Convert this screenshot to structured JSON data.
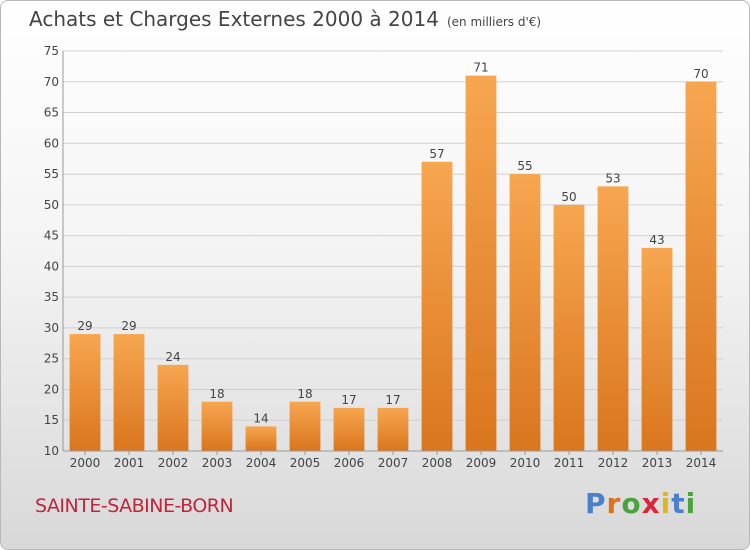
{
  "header": {
    "title": "Achats et Charges Externes 2000 à 2014",
    "unit": "(en milliers d'€)"
  },
  "footer": {
    "city": "SAINTE-SABINE-BORN",
    "logo": "Proxiti"
  },
  "colors": {
    "bar_top": "#f7a650",
    "bar_bottom": "#d9761e",
    "grid": "#d0d0d0",
    "axis_text": "#444444"
  },
  "chart_data": {
    "type": "bar",
    "title": "Achats et Charges Externes 2000 à 2014",
    "subtitle": "(en milliers d'€)",
    "xlabel": "",
    "ylabel": "",
    "categories": [
      "2000",
      "2001",
      "2002",
      "2003",
      "2004",
      "2005",
      "2006",
      "2007",
      "2008",
      "2009",
      "2010",
      "2011",
      "2012",
      "2013",
      "2014"
    ],
    "values": [
      29,
      29,
      24,
      18,
      14,
      18,
      17,
      17,
      57,
      71,
      55,
      50,
      53,
      43,
      70
    ],
    "ylim": [
      10,
      75
    ],
    "yticks": [
      10,
      15,
      20,
      25,
      30,
      35,
      40,
      45,
      50,
      55,
      60,
      65,
      70,
      75
    ],
    "grid": true,
    "legend": "none",
    "data_labels": true
  }
}
